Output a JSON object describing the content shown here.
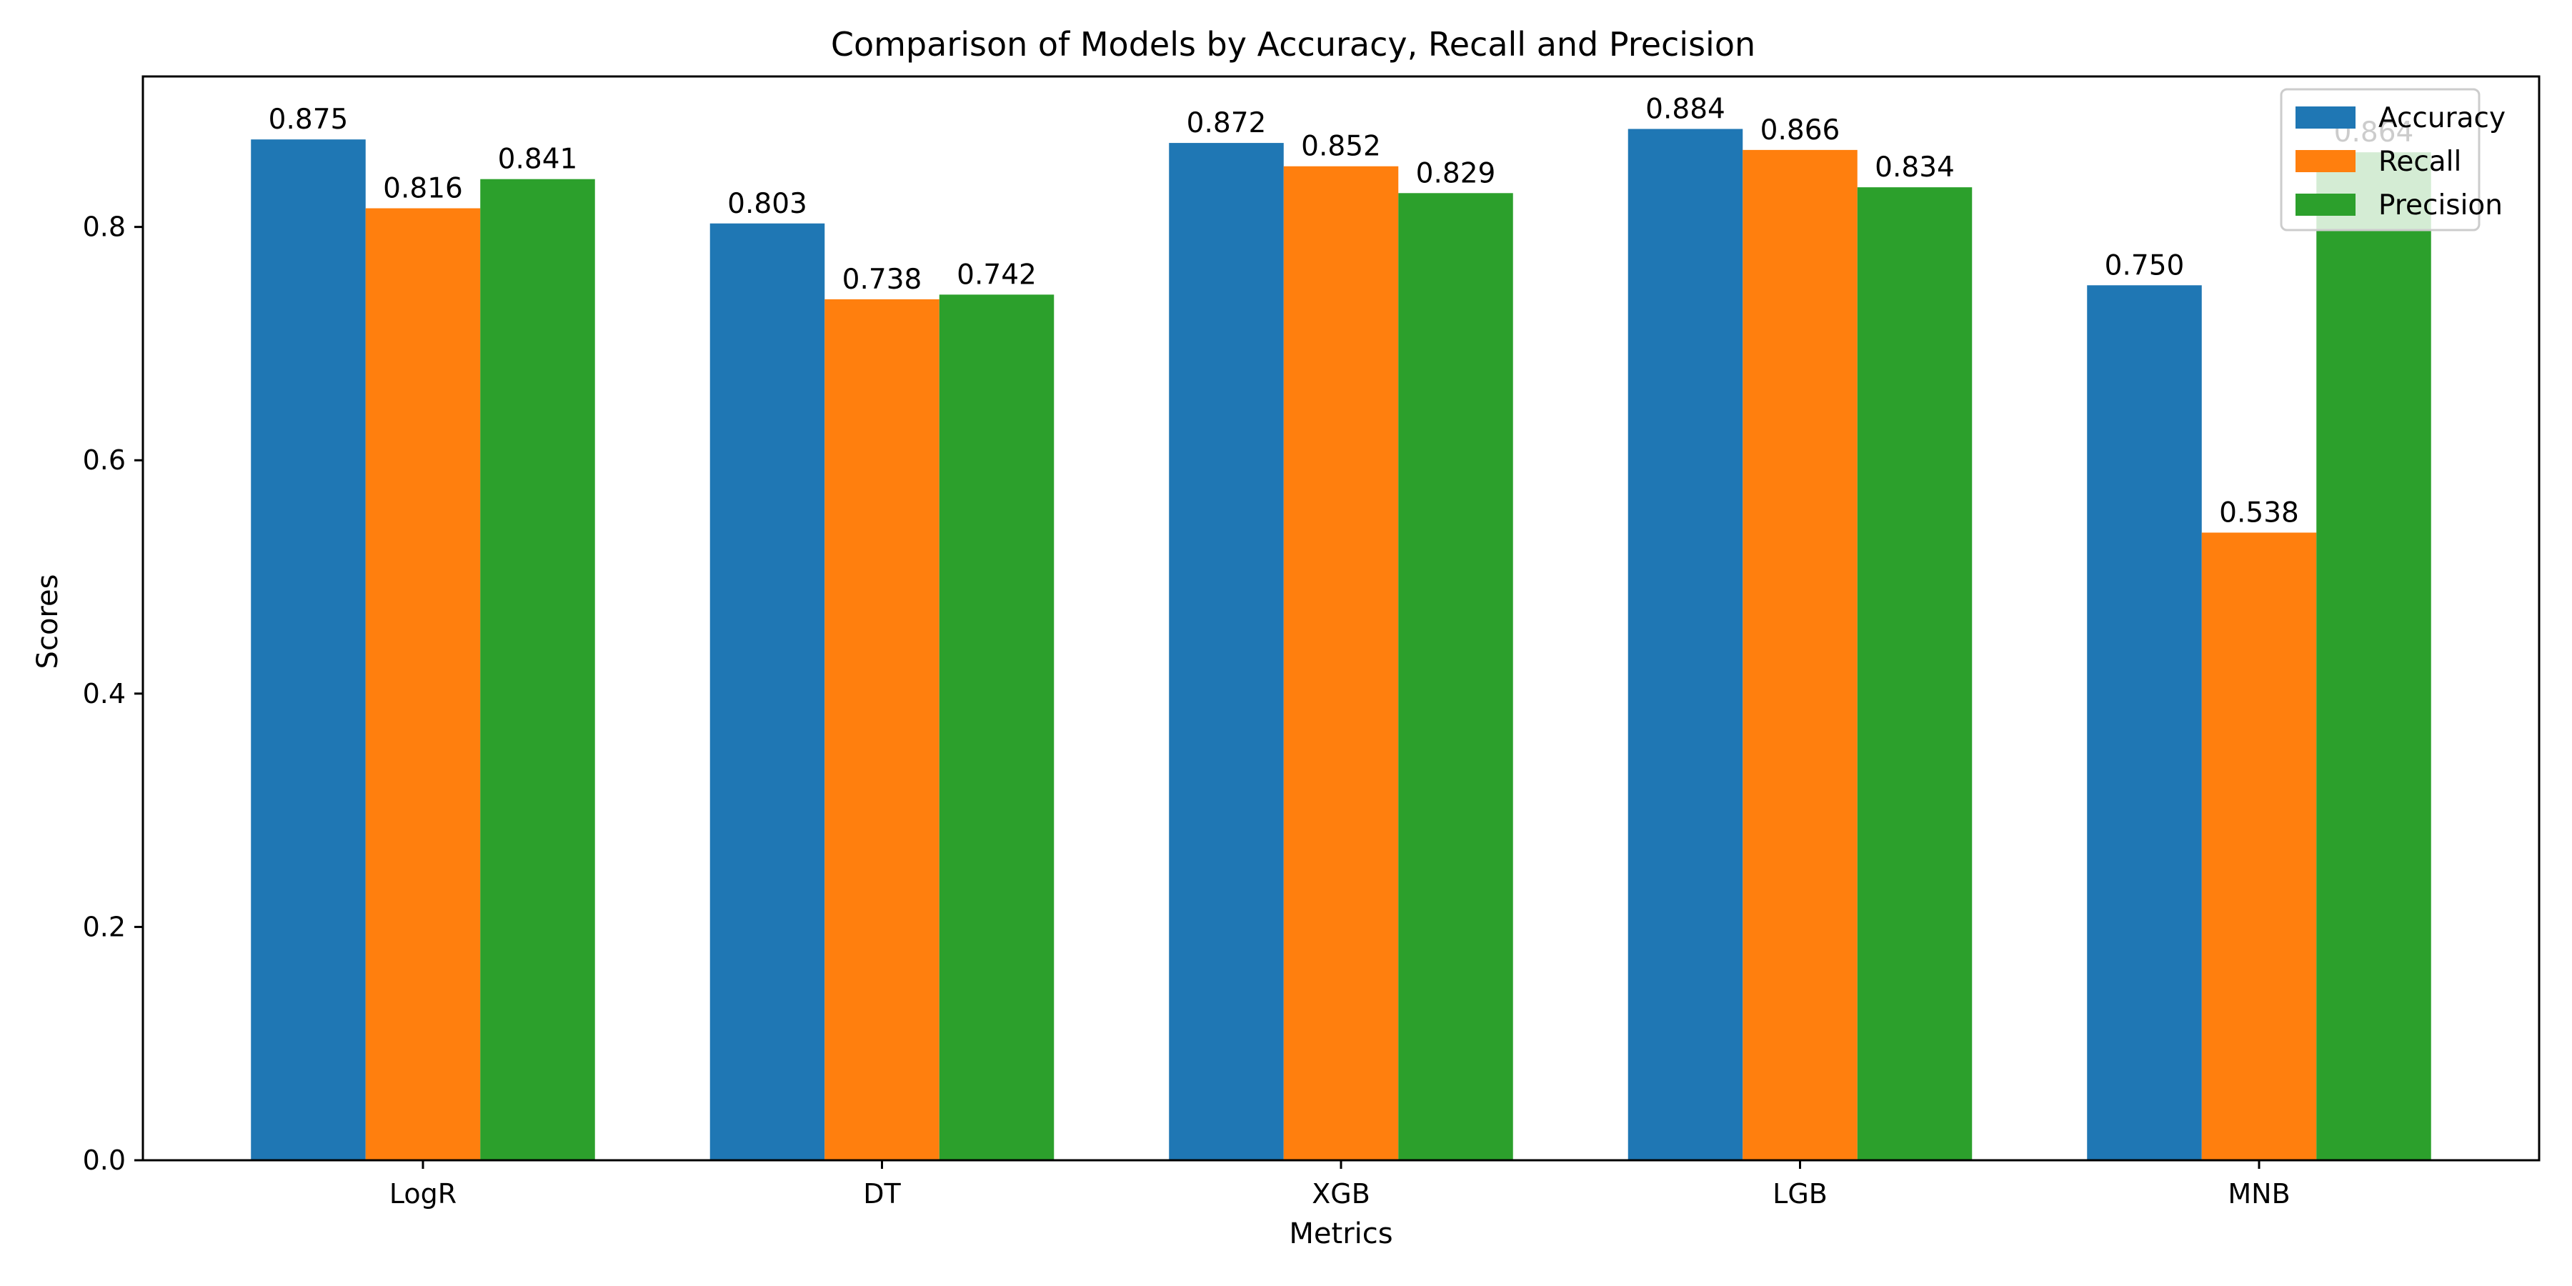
{
  "chart_data": {
    "type": "bar",
    "title": "Comparison of Models by Accuracy, Recall and Precision",
    "xlabel": "Metrics",
    "ylabel": "Scores",
    "categories": [
      "LogR",
      "DT",
      "XGB",
      "LGB",
      "MNB"
    ],
    "series": [
      {
        "name": "Accuracy",
        "color": "#1f77b4",
        "values": [
          0.875,
          0.803,
          0.872,
          0.884,
          0.75
        ],
        "labels": [
          "0.875",
          "0.803",
          "0.872",
          "0.884",
          "0.750"
        ]
      },
      {
        "name": "Recall",
        "color": "#ff7f0e",
        "values": [
          0.816,
          0.738,
          0.852,
          0.866,
          0.538
        ],
        "labels": [
          "0.816",
          "0.738",
          "0.852",
          "0.866",
          "0.538"
        ]
      },
      {
        "name": "Precision",
        "color": "#2ca02c",
        "values": [
          0.841,
          0.742,
          0.829,
          0.834,
          0.864
        ],
        "labels": [
          "0.841",
          "0.742",
          "0.829",
          "0.834",
          "0.864"
        ]
      }
    ],
    "ylim": [
      0,
      0.929
    ],
    "yticks": [
      0.0,
      0.2,
      0.4,
      0.6,
      0.8
    ],
    "ytick_labels": [
      "0.0",
      "0.2",
      "0.4",
      "0.6",
      "0.8"
    ],
    "grid": false,
    "legend_position": "top-right"
  }
}
